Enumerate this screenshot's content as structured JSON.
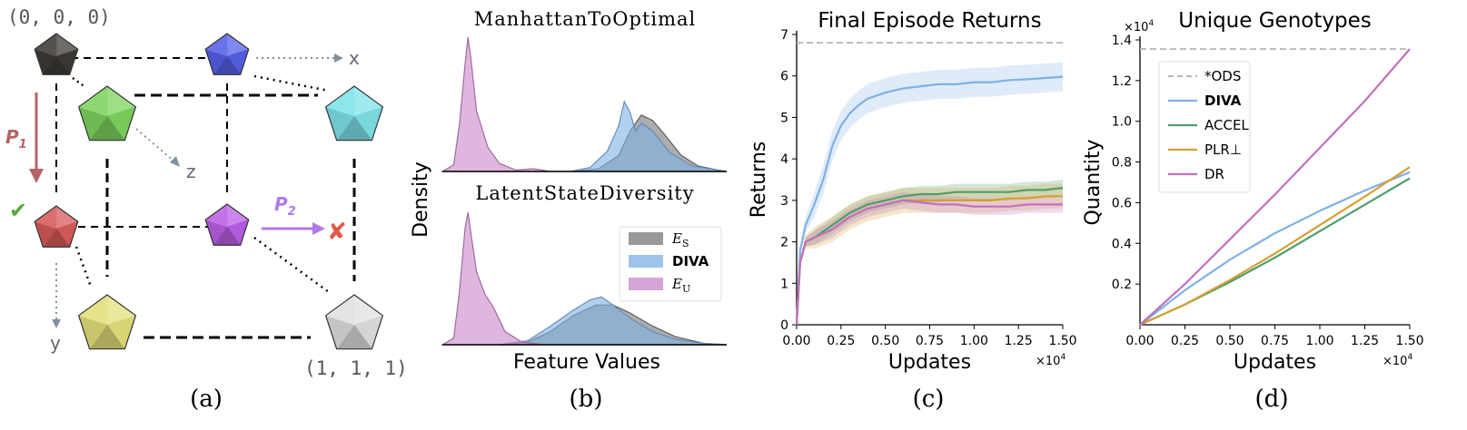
{
  "panels": {
    "a": {
      "caption": "(a)",
      "origin_label": "(0, 0, 0)",
      "end_label": "(1, 1, 1)",
      "axis_x": "x",
      "axis_y": "y",
      "axis_z": "z",
      "p1_label": "P",
      "p1_sub": "1",
      "p2_label": "P",
      "p2_sub": "2",
      "check_glyph": "✔",
      "cross_glyph": "✘",
      "colors": {
        "black": "#3d3a36",
        "blue": "#5560e6",
        "green": "#7dd45e",
        "cyan": "#7fe3ea",
        "red": "#d85a5a",
        "purple": "#bb5fe6",
        "yellow": "#e3e07a",
        "white": "#e0e0e0",
        "p1": "#b46464",
        "p2": "#b07ae8",
        "check": "#5aa83c",
        "cross": "#e05a4a",
        "axis": "#8090a0"
      }
    },
    "b": {
      "caption": "(b)",
      "top_title": "ManhattanToOptimal",
      "bottom_title": "LatentStateDiversity",
      "ylabel": "Density",
      "xlabel": "Feature Values"
    },
    "c": {
      "caption": "(c)"
    },
    "d": {
      "caption": "(d)"
    }
  },
  "chart_data": [
    {
      "panel": "b-top",
      "type": "area",
      "title": "ManhattanToOptimal",
      "xlabel": "Feature Values",
      "ylabel": "Density",
      "legend_placement": "lower-right",
      "series": [
        {
          "name": "E_S",
          "color": "#777777",
          "x": [
            0.45,
            0.55,
            0.62,
            0.66,
            0.7,
            0.74,
            0.78,
            0.84,
            0.9,
            0.97,
            1.0
          ],
          "y": [
            0,
            0.02,
            0.12,
            0.3,
            0.42,
            0.38,
            0.28,
            0.12,
            0.04,
            0.01,
            0
          ]
        },
        {
          "name": "DIVA",
          "color": "#7fb0e6",
          "x": [
            0.45,
            0.52,
            0.58,
            0.62,
            0.64,
            0.66,
            0.68,
            0.7,
            0.74,
            0.8,
            0.88,
            0.97,
            1.0
          ],
          "y": [
            0,
            0.03,
            0.15,
            0.34,
            0.52,
            0.44,
            0.3,
            0.36,
            0.3,
            0.14,
            0.04,
            0.01,
            0
          ]
        },
        {
          "name": "E_U",
          "color": "#c886c8",
          "x": [
            0.0,
            0.04,
            0.06,
            0.08,
            0.09,
            0.1,
            0.12,
            0.16,
            0.2,
            0.26,
            0.32,
            0.38,
            0.45
          ],
          "y": [
            0,
            0.05,
            0.35,
            0.8,
            1.0,
            0.85,
            0.45,
            0.18,
            0.06,
            0.01,
            0.02,
            0.0,
            0
          ]
        }
      ]
    },
    {
      "panel": "b-bottom",
      "type": "area",
      "title": "LatentStateDiversity",
      "xlabel": "Feature Values",
      "ylabel": "Density",
      "legend_placement": "lower-right",
      "series": [
        {
          "name": "E_S",
          "color": "#777777",
          "x": [
            0.2,
            0.3,
            0.38,
            0.46,
            0.54,
            0.6,
            0.66,
            0.74,
            0.82,
            0.92,
            1.0
          ],
          "y": [
            0,
            0.02,
            0.1,
            0.22,
            0.3,
            0.3,
            0.24,
            0.14,
            0.06,
            0.01,
            0
          ]
        },
        {
          "name": "DIVA",
          "color": "#7fb0e6",
          "x": [
            0.2,
            0.3,
            0.38,
            0.46,
            0.52,
            0.56,
            0.6,
            0.66,
            0.74,
            0.82,
            0.92,
            1.0
          ],
          "y": [
            0,
            0.03,
            0.14,
            0.26,
            0.34,
            0.36,
            0.3,
            0.2,
            0.1,
            0.04,
            0.01,
            0
          ]
        },
        {
          "name": "E_U",
          "color": "#c886c8",
          "x": [
            0.0,
            0.04,
            0.06,
            0.08,
            0.09,
            0.1,
            0.12,
            0.15,
            0.18,
            0.22,
            0.28,
            0.36
          ],
          "y": [
            0,
            0.05,
            0.4,
            0.88,
            1.0,
            0.85,
            0.55,
            0.38,
            0.28,
            0.1,
            0.02,
            0
          ]
        }
      ],
      "legend": [
        "E_S",
        "DIVA",
        "E_U"
      ]
    },
    {
      "panel": "c",
      "type": "line",
      "title": "Final Episode Returns",
      "xlabel": "Updates",
      "ylabel": "Returns",
      "x_multiplier": "×10^4",
      "xlim": [
        0,
        1.5
      ],
      "ylim": [
        0,
        7
      ],
      "xticks": [
        "0.00",
        "0.25",
        "0.50",
        "0.75",
        "1.00",
        "1.25",
        "1.50"
      ],
      "yticks": [
        "0",
        "1",
        "2",
        "3",
        "4",
        "5",
        "6",
        "7"
      ],
      "reference_line": {
        "y": 6.8,
        "color": "#bbbbbb"
      },
      "series": [
        {
          "name": "DIVA",
          "color": "#7fb0e6",
          "x": [
            0,
            0.02,
            0.05,
            0.1,
            0.15,
            0.2,
            0.25,
            0.3,
            0.35,
            0.4,
            0.5,
            0.6,
            0.7,
            0.8,
            0.9,
            1.0,
            1.1,
            1.2,
            1.3,
            1.4,
            1.5
          ],
          "y": [
            0,
            1.8,
            2.4,
            2.9,
            3.5,
            4.3,
            4.8,
            5.1,
            5.3,
            5.45,
            5.6,
            5.7,
            5.75,
            5.8,
            5.8,
            5.85,
            5.85,
            5.9,
            5.92,
            5.95,
            5.98
          ],
          "band": 0.35
        },
        {
          "name": "ACCEL",
          "color": "#4f9e6e",
          "x": [
            0,
            0.02,
            0.05,
            0.1,
            0.2,
            0.3,
            0.4,
            0.5,
            0.6,
            0.7,
            0.8,
            0.9,
            1.0,
            1.1,
            1.2,
            1.3,
            1.4,
            1.5
          ],
          "y": [
            0,
            1.5,
            2.0,
            2.1,
            2.4,
            2.7,
            2.9,
            3.0,
            3.1,
            3.15,
            3.15,
            3.2,
            3.2,
            3.2,
            3.2,
            3.25,
            3.25,
            3.3
          ],
          "band": 0.2
        },
        {
          "name": "PLR⊥",
          "color": "#d4a032",
          "x": [
            0,
            0.02,
            0.05,
            0.1,
            0.2,
            0.3,
            0.4,
            0.5,
            0.6,
            0.7,
            0.8,
            0.9,
            1.0,
            1.1,
            1.2,
            1.3,
            1.4,
            1.5
          ],
          "y": [
            0,
            1.5,
            2.0,
            2.1,
            2.3,
            2.6,
            2.8,
            2.9,
            3.0,
            3.0,
            3.0,
            3.0,
            3.0,
            3.0,
            3.05,
            3.05,
            3.1,
            3.1
          ],
          "band": 0.3
        },
        {
          "name": "DR",
          "color": "#c070c0",
          "x": [
            0,
            0.02,
            0.05,
            0.1,
            0.2,
            0.3,
            0.4,
            0.5,
            0.6,
            0.7,
            0.8,
            0.9,
            1.0,
            1.1,
            1.2,
            1.3,
            1.4,
            1.5
          ],
          "y": [
            0,
            1.5,
            2.0,
            2.1,
            2.3,
            2.6,
            2.8,
            2.9,
            3.0,
            2.95,
            2.9,
            2.9,
            2.85,
            2.85,
            2.85,
            2.9,
            2.9,
            2.9
          ],
          "band": 0.2
        }
      ]
    },
    {
      "panel": "d",
      "type": "line",
      "title": "Unique Genotypes",
      "xlabel": "Updates",
      "ylabel": "Quantity",
      "x_multiplier": "×10^4",
      "y_multiplier": "×10^4",
      "xlim": [
        0,
        1.5
      ],
      "ylim": [
        0,
        1.4
      ],
      "xticks": [
        "0.00",
        "0.25",
        "0.50",
        "0.75",
        "1.00",
        "1.25",
        "1.50"
      ],
      "yticks": [
        "0.2",
        "0.4",
        "0.6",
        "0.8",
        "1.0",
        "1.2",
        "1.4"
      ],
      "legend_placement": "upper-left",
      "series": [
        {
          "name": "*ODS",
          "color": "#bbbbbb",
          "dashed": true,
          "x": [
            0,
            1.5
          ],
          "y": [
            1.355,
            1.355
          ]
        },
        {
          "name": "DIVA",
          "color": "#7fb0e6",
          "bold": true,
          "x": [
            0,
            0.25,
            0.5,
            0.75,
            1.0,
            1.25,
            1.5
          ],
          "y": [
            0,
            0.17,
            0.32,
            0.45,
            0.56,
            0.66,
            0.75
          ]
        },
        {
          "name": "ACCEL",
          "color": "#4f9e6e",
          "x": [
            0,
            0.25,
            0.5,
            0.75,
            1.0,
            1.25,
            1.5
          ],
          "y": [
            0,
            0.1,
            0.21,
            0.33,
            0.46,
            0.59,
            0.72
          ]
        },
        {
          "name": "PLR⊥",
          "color": "#d4a032",
          "x": [
            0,
            0.25,
            0.5,
            0.75,
            1.0,
            1.25,
            1.5
          ],
          "y": [
            0,
            0.1,
            0.22,
            0.35,
            0.49,
            0.63,
            0.775
          ]
        },
        {
          "name": "DR",
          "color": "#c070c0",
          "x": [
            0,
            0.25,
            0.5,
            0.75,
            1.0,
            1.25,
            1.5
          ],
          "y": [
            0,
            0.2,
            0.42,
            0.64,
            0.87,
            1.1,
            1.355
          ]
        }
      ]
    }
  ]
}
